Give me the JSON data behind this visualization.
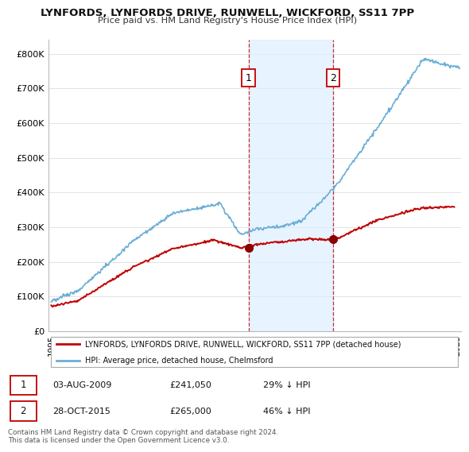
{
  "title1": "LYNFORDS, LYNFORDS DRIVE, RUNWELL, WICKFORD, SS11 7PP",
  "title2": "Price paid vs. HM Land Registry's House Price Index (HPI)",
  "ylabel_ticks": [
    "£0",
    "£100K",
    "£200K",
    "£300K",
    "£400K",
    "£500K",
    "£600K",
    "£700K",
    "£800K"
  ],
  "ytick_vals": [
    0,
    100000,
    200000,
    300000,
    400000,
    500000,
    600000,
    700000,
    800000
  ],
  "ylim": [
    0,
    840000
  ],
  "xlim_start": 1994.8,
  "xlim_end": 2025.3,
  "hpi_color": "#6baed6",
  "hpi_shade_color": "#ddeeff",
  "price_color": "#c00000",
  "marker_color": "#8b0000",
  "vline_color": "#c00000",
  "sale1_x": 2009.58,
  "sale1_y": 241050,
  "sale2_x": 2015.83,
  "sale2_y": 265000,
  "legend_line1": "LYNFORDS, LYNFORDS DRIVE, RUNWELL, WICKFORD, SS11 7PP (detached house)",
  "legend_line2": "HPI: Average price, detached house, Chelmsford",
  "table_rows": [
    {
      "num": "1",
      "date": "03-AUG-2009",
      "price": "£241,050",
      "pct": "29% ↓ HPI"
    },
    {
      "num": "2",
      "date": "28-OCT-2015",
      "price": "£265,000",
      "pct": "46% ↓ HPI"
    }
  ],
  "footnote": "Contains HM Land Registry data © Crown copyright and database right 2024.\nThis data is licensed under the Open Government Licence v3.0.",
  "background_color": "#ffffff",
  "grid_color": "#dddddd"
}
